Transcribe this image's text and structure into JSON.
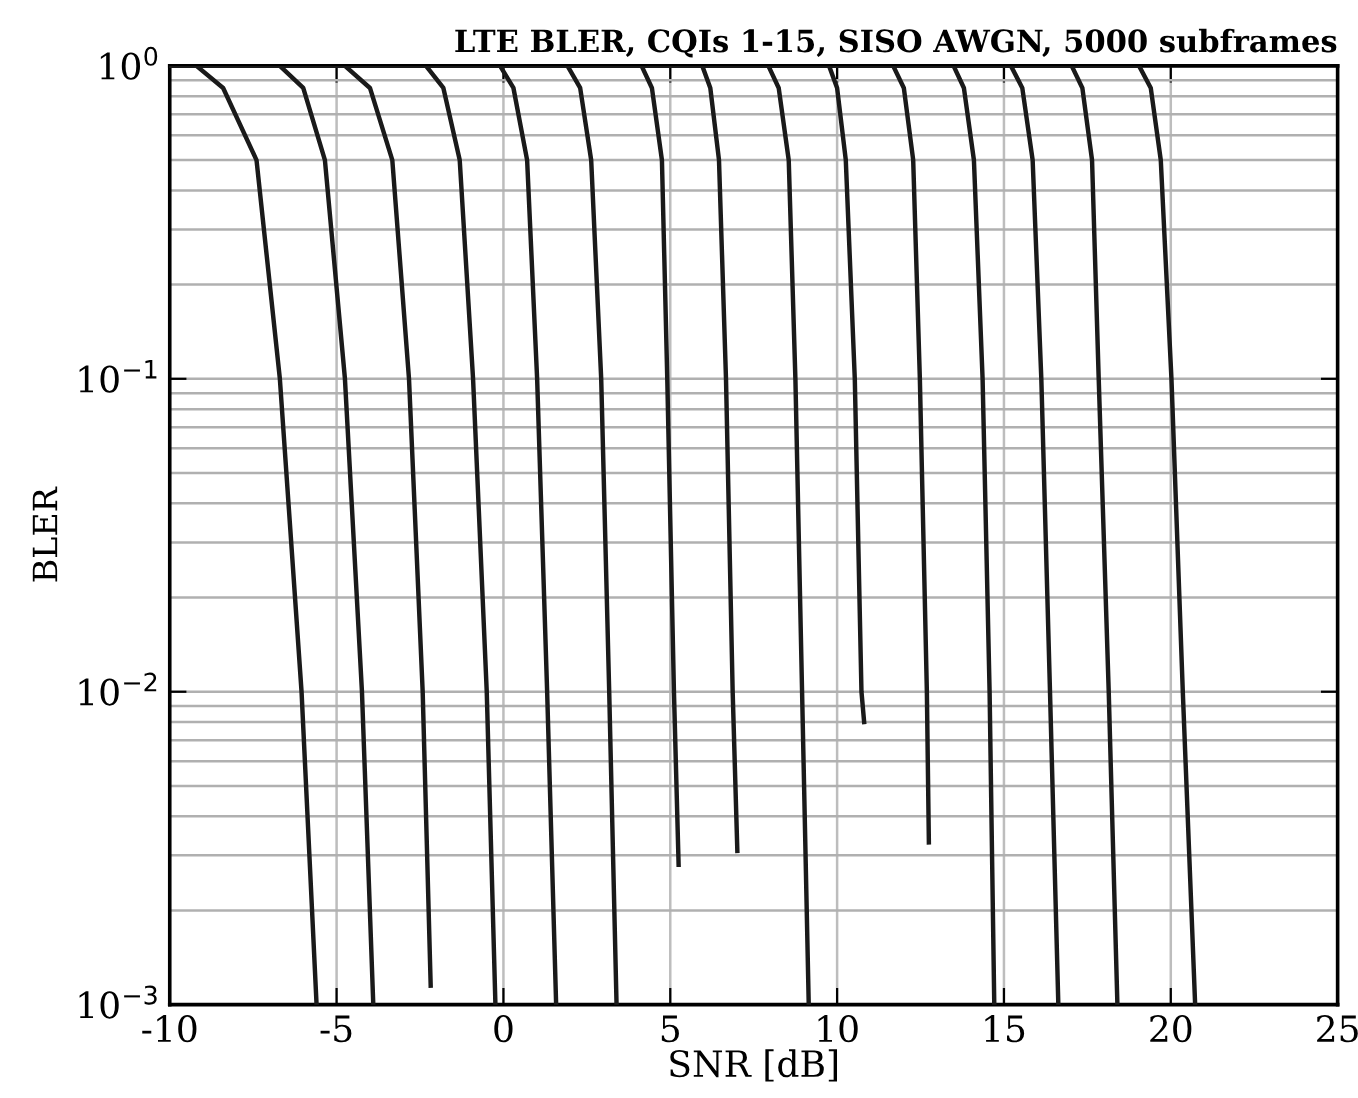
{
  "chart_data": {
    "type": "line",
    "title": "LTE BLER, CQIs 1-15, SISO AWGN, 5000 subframes",
    "xlabel": "SNR [dB]",
    "ylabel": "BLER",
    "log": "y",
    "xlim": [
      -10,
      25
    ],
    "xticks": [
      -10,
      -5,
      0,
      5,
      10,
      15,
      20,
      25
    ],
    "ylim": [
      0.001,
      1
    ],
    "yticks": [
      {
        "value": 0.001,
        "label": "10$^{−3}$"
      },
      {
        "value": 0.01,
        "label": "10$^{−2}$"
      },
      {
        "value": 0.1,
        "label": "10$^{−1}$"
      },
      {
        "value": 1,
        "label": "10$^{0}$"
      }
    ],
    "grid": true,
    "line_style": "solid",
    "marker": "none",
    "series": [
      {
        "color": "#1a1a1a",
        "x": [
          -10,
          -9.2,
          -8.4,
          -7.4,
          -6.7,
          -6.05,
          -5.6
        ],
        "values": [
          1,
          1,
          0.85,
          0.5,
          0.1,
          0.01,
          0.001
        ]
      },
      {
        "color": "#1a1a1a",
        "x": [
          -10,
          -6.7,
          -6.0,
          -5.35,
          -4.75,
          -4.24,
          -3.9
        ],
        "values": [
          1,
          1,
          0.85,
          0.5,
          0.1,
          0.01,
          0.001
        ]
      },
      {
        "color": "#1a1a1a",
        "x": [
          -10,
          -4.75,
          -4.0,
          -3.33,
          -2.83,
          -2.42,
          -2.18
        ],
        "values": [
          1,
          1,
          0.85,
          0.5,
          0.1,
          0.01,
          0.00115
        ]
      },
      {
        "color": "#1a1a1a",
        "x": [
          -10,
          -2.32,
          -1.8,
          -1.31,
          -0.91,
          -0.5,
          -0.24
        ],
        "values": [
          1,
          1,
          0.85,
          0.5,
          0.1,
          0.01,
          0.001
        ]
      },
      {
        "color": "#1a1a1a",
        "x": [
          -10,
          -0.1,
          0.3,
          0.71,
          1.01,
          1.31,
          1.58
        ],
        "values": [
          1,
          1,
          0.85,
          0.5,
          0.1,
          0.01,
          0.001
        ]
      },
      {
        "color": "#1a1a1a",
        "x": [
          -10,
          1.92,
          2.3,
          2.63,
          2.93,
          3.17,
          3.39
        ],
        "values": [
          1,
          1,
          0.85,
          0.5,
          0.1,
          0.01,
          0.001
        ]
      },
      {
        "color": "#1a1a1a",
        "x": [
          -10,
          4.14,
          4.45,
          4.75,
          4.91,
          5.11,
          5.25
        ],
        "values": [
          1,
          1,
          0.85,
          0.5,
          0.1,
          0.01,
          0.0028
        ]
      },
      {
        "color": "#1a1a1a",
        "x": [
          -10,
          5.96,
          6.2,
          6.46,
          6.67,
          6.87,
          7.01
        ],
        "values": [
          1,
          1,
          0.85,
          0.5,
          0.1,
          0.01,
          0.0031
        ]
      },
      {
        "color": "#1a1a1a",
        "x": [
          -10,
          7.94,
          8.25,
          8.55,
          8.75,
          8.95,
          9.15
        ],
        "values": [
          1,
          1,
          0.85,
          0.5,
          0.1,
          0.01,
          0.001
        ]
      },
      {
        "color": "#1a1a1a",
        "x": [
          -10,
          9.76,
          10.0,
          10.26,
          10.53,
          10.73,
          10.81
        ],
        "values": [
          1,
          1,
          0.85,
          0.5,
          0.1,
          0.01,
          0.008
        ]
      },
      {
        "color": "#1a1a1a",
        "x": [
          -10,
          11.68,
          12.0,
          12.28,
          12.48,
          12.69,
          12.75
        ],
        "values": [
          1,
          1,
          0.85,
          0.5,
          0.1,
          0.01,
          0.0033
        ]
      },
      {
        "color": "#1a1a1a",
        "x": [
          -10,
          13.49,
          13.8,
          14.1,
          14.36,
          14.57,
          14.71
        ],
        "values": [
          1,
          1,
          0.85,
          0.5,
          0.1,
          0.01,
          0.001
        ]
      },
      {
        "color": "#1a1a1a",
        "x": [
          -10,
          15.21,
          15.55,
          15.86,
          16.12,
          16.38,
          16.63
        ],
        "values": [
          1,
          1,
          0.85,
          0.5,
          0.1,
          0.01,
          0.001
        ]
      },
      {
        "color": "#1a1a1a",
        "x": [
          -10,
          17.03,
          17.35,
          17.64,
          17.84,
          18.14,
          18.4
        ],
        "values": [
          1,
          1,
          0.85,
          0.5,
          0.1,
          0.01,
          0.001
        ]
      },
      {
        "color": "#1a1a1a",
        "x": [
          -10,
          19.05,
          19.4,
          19.7,
          20.02,
          20.36,
          20.73
        ],
        "values": [
          1,
          1,
          0.85,
          0.5,
          0.1,
          0.01,
          0.001
        ]
      }
    ]
  }
}
